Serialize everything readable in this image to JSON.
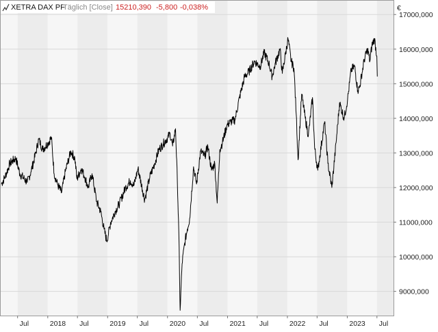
{
  "header": {
    "icon": "line-chart-icon",
    "instrument": "XETRA DAX PF",
    "interval": "Täglich [Close]",
    "last": "15210,390",
    "change": "-5,800",
    "change_pct": "-0,038%",
    "change_color": "#cc2222"
  },
  "chart_data": {
    "type": "line",
    "currency_label": "€",
    "series_color": "#000000",
    "grid": true,
    "ylim": [
      8300,
      17400
    ],
    "y_ticks": [
      {
        "v": 17000,
        "label": "17000,000"
      },
      {
        "v": 16000,
        "label": "16000,000"
      },
      {
        "v": 15000,
        "label": "15000,000"
      },
      {
        "v": 14000,
        "label": "14000,000"
      },
      {
        "v": 13000,
        "label": "13000,000"
      },
      {
        "v": 12000,
        "label": "12000,000"
      },
      {
        "v": 11000,
        "label": "11000,000"
      },
      {
        "v": 10000,
        "label": "10000,000"
      },
      {
        "v": 9000,
        "label": "9000,000"
      }
    ],
    "x_range": [
      "2017-03-20",
      "2023-10-10"
    ],
    "x_ticks": [
      {
        "d": "2017-07-01",
        "label": "Jul"
      },
      {
        "d": "2018-01-01",
        "label": "2018"
      },
      {
        "d": "2018-07-01",
        "label": "Jul"
      },
      {
        "d": "2019-01-01",
        "label": "2019"
      },
      {
        "d": "2019-07-01",
        "label": "Jul"
      },
      {
        "d": "2020-01-01",
        "label": "2020"
      },
      {
        "d": "2020-07-01",
        "label": "Jul"
      },
      {
        "d": "2021-01-01",
        "label": "2021"
      },
      {
        "d": "2021-07-01",
        "label": "Jul"
      },
      {
        "d": "2022-01-01",
        "label": "2022"
      },
      {
        "d": "2022-07-01",
        "label": "Jul"
      },
      {
        "d": "2023-01-01",
        "label": "2023"
      },
      {
        "d": "2023-07-01",
        "label": "Jul"
      }
    ],
    "x": [
      "2017-03-24",
      "2017-04-15",
      "2017-05-15",
      "2017-06-20",
      "2017-07-15",
      "2017-08-29",
      "2017-09-20",
      "2017-10-20",
      "2017-11-07",
      "2017-12-01",
      "2018-01-05",
      "2018-01-23",
      "2018-02-09",
      "2018-03-01",
      "2018-03-26",
      "2018-04-20",
      "2018-05-22",
      "2018-06-15",
      "2018-06-28",
      "2018-07-25",
      "2018-08-15",
      "2018-09-05",
      "2018-09-28",
      "2018-10-26",
      "2018-11-20",
      "2018-12-10",
      "2018-12-27",
      "2019-01-20",
      "2019-02-15",
      "2019-03-15",
      "2019-04-20",
      "2019-05-20",
      "2019-06-10",
      "2019-07-05",
      "2019-08-15",
      "2019-09-15",
      "2019-10-15",
      "2019-11-10",
      "2019-12-05",
      "2020-01-17",
      "2020-02-01",
      "2020-02-19",
      "2020-03-01",
      "2020-03-10",
      "2020-03-18",
      "2020-03-30",
      "2020-04-15",
      "2020-05-01",
      "2020-05-15",
      "2020-06-08",
      "2020-06-26",
      "2020-07-21",
      "2020-08-15",
      "2020-09-03",
      "2020-09-25",
      "2020-10-15",
      "2020-10-30",
      "2020-11-15",
      "2020-12-01",
      "2020-12-28",
      "2021-01-20",
      "2021-02-15",
      "2021-03-15",
      "2021-04-15",
      "2021-05-12",
      "2021-06-15",
      "2021-07-19",
      "2021-08-13",
      "2021-09-10",
      "2021-09-30",
      "2021-10-20",
      "2021-11-17",
      "2021-12-01",
      "2021-12-20",
      "2022-01-05",
      "2022-01-24",
      "2022-02-10",
      "2022-02-24",
      "2022-03-07",
      "2022-03-29",
      "2022-04-20",
      "2022-05-09",
      "2022-06-03",
      "2022-06-16",
      "2022-07-05",
      "2022-08-16",
      "2022-09-05",
      "2022-09-29",
      "2022-10-25",
      "2022-11-15",
      "2022-12-13",
      "2023-01-03",
      "2023-01-25",
      "2023-02-15",
      "2023-03-06",
      "2023-03-17",
      "2023-04-15",
      "2023-05-05",
      "2023-05-19",
      "2023-05-31",
      "2023-06-16",
      "2023-06-30"
    ],
    "values": [
      12100,
      12300,
      12700,
      12850,
      12400,
      12150,
      12450,
      13000,
      13400,
      13100,
      13300,
      13450,
      12400,
      12100,
      11850,
      12500,
      13050,
      12850,
      12250,
      12550,
      12300,
      12000,
      12400,
      11600,
      11300,
      10800,
      10450,
      11000,
      11300,
      11550,
      12000,
      12200,
      12050,
      12550,
      11650,
      12300,
      12700,
      13100,
      13250,
      13550,
      13200,
      13700,
      12200,
      10700,
      8450,
      9800,
      10400,
      10800,
      11100,
      12600,
      12100,
      13050,
      12900,
      13200,
      12500,
      12700,
      11550,
      13100,
      13300,
      13800,
      13900,
      13950,
      14600,
      15200,
      15350,
      15650,
      15500,
      15900,
      15600,
      15200,
      15600,
      16000,
      15300,
      15850,
      16300,
      15650,
      15450,
      14100,
      12800,
      14700,
      14000,
      13500,
      14600,
      13150,
      12500,
      13900,
      12700,
      12000,
      13300,
      14450,
      14000,
      14550,
      15400,
      15500,
      14800,
      14900,
      15700,
      16000,
      15650,
      16100,
      16300,
      15800
    ],
    "end_value": 15210.39
  }
}
